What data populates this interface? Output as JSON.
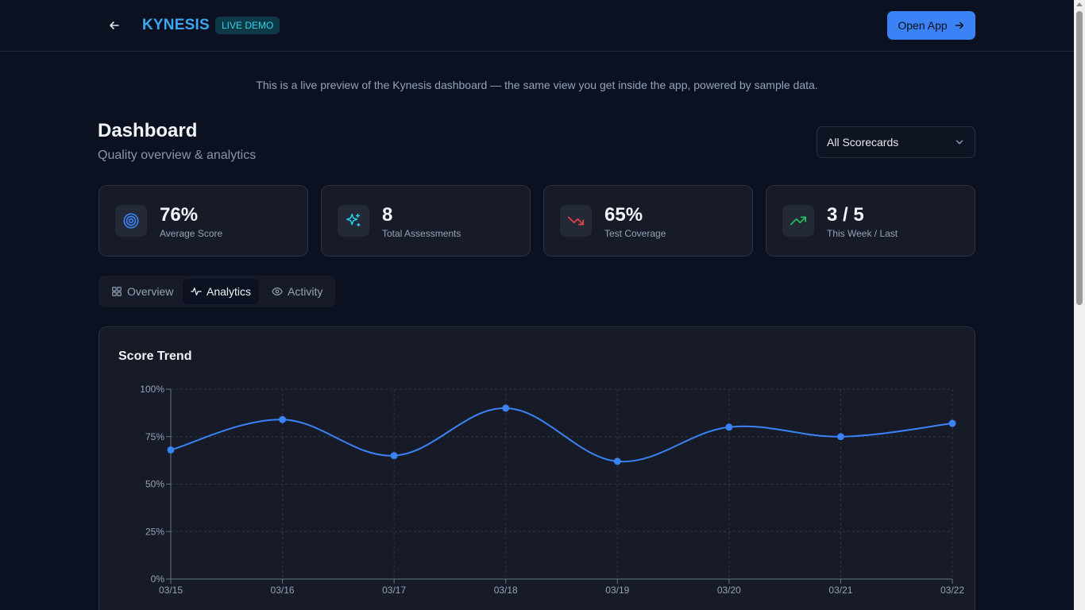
{
  "header": {
    "brand": "KYNESIS",
    "badge": "LIVE DEMO",
    "open_app_label": "Open App",
    "icons": {
      "back": "arrow-left-icon",
      "open": "arrow-right-icon"
    }
  },
  "preview_note": "This is a live preview of the Kynesis dashboard — the same view you get inside the app, powered by sample data.",
  "page": {
    "title": "Dashboard",
    "subtitle": "Quality overview & analytics"
  },
  "scorecard_select": {
    "value": "All Scorecards"
  },
  "stats": [
    {
      "value": "76%",
      "label": "Average Score",
      "icon": "target-icon",
      "color": "#3b82f6"
    },
    {
      "value": "8",
      "label": "Total Assessments",
      "icon": "sparkles-icon",
      "color": "#22d3ee"
    },
    {
      "value": "65%",
      "label": "Test Coverage",
      "icon": "trending-down-icon",
      "color": "#ef4444"
    },
    {
      "value": "3 / 5",
      "label": "This Week / Last",
      "icon": "trending-up-icon",
      "color": "#22c55e"
    }
  ],
  "tabs": [
    {
      "label": "Overview",
      "icon": "grid-icon",
      "active": false
    },
    {
      "label": "Analytics",
      "icon": "activity-icon",
      "active": true
    },
    {
      "label": "Activity",
      "icon": "eye-icon",
      "active": false
    }
  ],
  "chart_data": {
    "type": "line",
    "title": "Score Trend",
    "x": [
      "03/15",
      "03/16",
      "03/17",
      "03/18",
      "03/19",
      "03/20",
      "03/21",
      "03/22"
    ],
    "series": [
      {
        "values": [
          68,
          84,
          65,
          90,
          62,
          80,
          75,
          82
        ],
        "color": "#3b82f6"
      }
    ],
    "yticks": [
      "0%",
      "25%",
      "50%",
      "75%",
      "100%"
    ],
    "ylim": [
      0,
      100
    ],
    "grid": true,
    "xlabel": "",
    "ylabel": ""
  }
}
